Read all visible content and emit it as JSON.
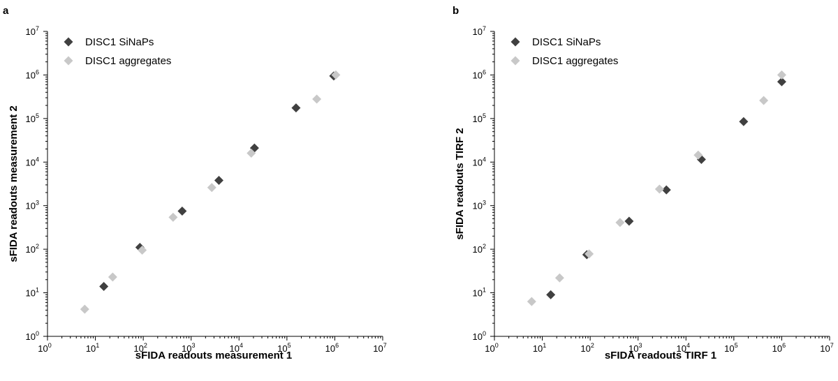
{
  "colors": {
    "series_dark": "#404040",
    "series_light": "#c8c8c8"
  },
  "chart_data": [
    {
      "type": "scatter",
      "panel_label": "a",
      "xlabel": "sFIDA readouts measurement 1",
      "ylabel": "sFIDA readouts measurement 2",
      "xscale": "log",
      "yscale": "log",
      "xlim": [
        1,
        10000000
      ],
      "ylim": [
        1,
        10000000
      ],
      "x_tick_exponents": [
        "0",
        "1",
        "2",
        "3",
        "4",
        "5",
        "6",
        "7"
      ],
      "y_tick_exponents": [
        "0",
        "1",
        "2",
        "3",
        "4",
        "5",
        "6",
        "7"
      ],
      "tick_base": "10",
      "grid": false,
      "legend_position": "top-left",
      "marker": "diamond",
      "series": [
        {
          "name": "DISC1 SiNaPs",
          "color": "#404040",
          "x": [
            15,
            85,
            650,
            3800,
            21000,
            155000,
            950000
          ],
          "y": [
            14,
            110,
            750,
            3800,
            21000,
            175000,
            950000
          ]
        },
        {
          "name": "DISC1 aggregates",
          "color": "#c8c8c8",
          "x": [
            6,
            23,
            95,
            420,
            2700,
            18000,
            420000,
            1050000
          ],
          "y": [
            4.2,
            23,
            95,
            540,
            2600,
            16000,
            280000,
            1000000
          ]
        }
      ]
    },
    {
      "type": "scatter",
      "panel_label": "b",
      "xlabel": "sFIDA readouts TIRF 1",
      "ylabel": "sFIDA readouts TIRF 2",
      "xscale": "log",
      "yscale": "log",
      "xlim": [
        1,
        10000000
      ],
      "ylim": [
        1,
        10000000
      ],
      "x_tick_exponents": [
        "0",
        "1",
        "2",
        "3",
        "4",
        "5",
        "6",
        "7"
      ],
      "y_tick_exponents": [
        "0",
        "1",
        "2",
        "3",
        "4",
        "5",
        "6",
        "7"
      ],
      "tick_base": "10",
      "grid": false,
      "legend_position": "top-left",
      "marker": "diamond",
      "series": [
        {
          "name": "DISC1 SiNaPs",
          "color": "#404040",
          "x": [
            15,
            85,
            650,
            3900,
            21000,
            160000,
            1000000
          ],
          "y": [
            9,
            75,
            440,
            2300,
            11500,
            85000,
            700000
          ]
        },
        {
          "name": "DISC1 aggregates",
          "color": "#c8c8c8",
          "x": [
            6,
            23,
            95,
            420,
            2800,
            18000,
            420000,
            1000000
          ],
          "y": [
            6.3,
            22,
            78,
            410,
            2400,
            14500,
            260000,
            1000000
          ]
        }
      ]
    }
  ]
}
